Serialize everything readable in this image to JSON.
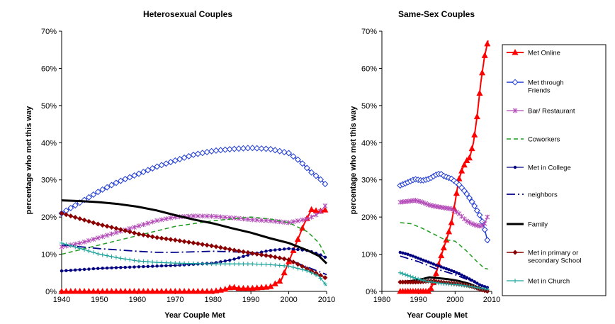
{
  "chart_data": [
    {
      "type": "line",
      "title": "Heterosexual Couples",
      "xlabel": "Year Couple Met",
      "ylabel": "percentage who met this way",
      "xlim": [
        1940,
        2010
      ],
      "ylim": [
        0,
        70
      ],
      "xticks": [
        "1940",
        "1950",
        "1960",
        "1970",
        "1980",
        "1990",
        "2000",
        "2010"
      ],
      "yticks": [
        "0%",
        "10%",
        "20%",
        "30%",
        "40%",
        "50%",
        "60%",
        "70%"
      ],
      "grid": false,
      "legend": "none",
      "series": [
        {
          "key": "online",
          "color": "#ff0000",
          "marker": "triangle",
          "dash": "",
          "width": 2,
          "x": [
            1940,
            1950,
            1960,
            1970,
            1980,
            1983,
            1985,
            1987,
            1990,
            1995,
            1998,
            2000,
            2002,
            2004,
            2006,
            2008,
            2010
          ],
          "y": [
            0,
            0,
            0,
            0,
            0,
            0.5,
            1.2,
            0.8,
            0.8,
            1.2,
            3,
            8,
            13,
            18,
            22,
            21.5,
            22
          ]
        },
        {
          "key": "friends",
          "color": "#1f3bd6",
          "marker": "diamond",
          "dash": "",
          "width": 1.5,
          "x": [
            1940,
            1945,
            1950,
            1955,
            1960,
            1965,
            1970,
            1975,
            1980,
            1985,
            1990,
            1995,
            2000,
            2003,
            2006,
            2008,
            2010
          ],
          "y": [
            21,
            24,
            27,
            29.5,
            31.5,
            33.5,
            35.2,
            36.8,
            37.8,
            38.3,
            38.6,
            38.3,
            37.2,
            35,
            32,
            30.5,
            28.5
          ]
        },
        {
          "key": "bar",
          "color": "#b34ab8",
          "marker": "star",
          "dash": "",
          "width": 1.2,
          "x": [
            1940,
            1945,
            1950,
            1955,
            1960,
            1965,
            1970,
            1975,
            1980,
            1985,
            1990,
            1995,
            2000,
            2005,
            2008,
            2010
          ],
          "y": [
            12,
            13,
            14.5,
            16,
            17.5,
            19,
            20,
            20.3,
            20.2,
            19.8,
            19.3,
            19,
            18.5,
            19.5,
            21,
            23.5
          ]
        },
        {
          "key": "coworkers",
          "color": "#219b21",
          "marker": "",
          "dash": "6,4",
          "width": 1.5,
          "x": [
            1940,
            1950,
            1960,
            1970,
            1980,
            1985,
            1990,
            1995,
            2000,
            2005,
            2008,
            2010
          ],
          "y": [
            10,
            12.5,
            15,
            17.5,
            19,
            19.5,
            20,
            19.5,
            18.5,
            16,
            13,
            9
          ]
        },
        {
          "key": "college",
          "color": "#000080",
          "marker": "dot",
          "dash": "",
          "width": 1.2,
          "x": [
            1940,
            1950,
            1960,
            1970,
            1980,
            1985,
            1990,
            1995,
            2000,
            2005,
            2008,
            2010
          ],
          "y": [
            5.5,
            6.2,
            6.6,
            7,
            7.6,
            8.5,
            10,
            11,
            11.5,
            11,
            10,
            9
          ]
        },
        {
          "key": "neighbors",
          "color": "#00008b",
          "marker": "",
          "dash": "12,4,2,4",
          "width": 1.8,
          "x": [
            1940,
            1950,
            1960,
            1965,
            1970,
            1980,
            1990,
            2000,
            2005,
            2010
          ],
          "y": [
            12.5,
            11.5,
            10.8,
            10.5,
            10.5,
            10.8,
            10.5,
            8.5,
            6.5,
            4.5
          ]
        },
        {
          "key": "family",
          "color": "#000000",
          "marker": "",
          "dash": "",
          "width": 3,
          "x": [
            1940,
            1945,
            1950,
            1955,
            1960,
            1965,
            1970,
            1975,
            1980,
            1985,
            1990,
            1995,
            2000,
            2005,
            2008,
            2010
          ],
          "y": [
            24.5,
            24.3,
            24,
            23.5,
            22.8,
            21.8,
            20.5,
            19.3,
            18.3,
            17,
            15.8,
            14.3,
            13,
            11,
            9.5,
            7.5
          ]
        },
        {
          "key": "primary",
          "color": "#8b0000",
          "marker": "diamond-filled",
          "dash": "",
          "width": 1.5,
          "x": [
            1940,
            1945,
            1950,
            1955,
            1960,
            1965,
            1970,
            1975,
            1980,
            1985,
            1990,
            1995,
            2000,
            2005,
            2010
          ],
          "y": [
            21,
            19.5,
            18,
            16.8,
            15.5,
            14.5,
            13.8,
            13,
            12.2,
            11.2,
            10.3,
            9.5,
            8.5,
            6,
            3.5
          ]
        },
        {
          "key": "church",
          "color": "#1aa39a",
          "marker": "plus",
          "dash": "",
          "width": 1.2,
          "x": [
            1940,
            1945,
            1950,
            1955,
            1960,
            1965,
            1970,
            1975,
            1980,
            1985,
            1990,
            1995,
            2000,
            2005,
            2008,
            2010
          ],
          "y": [
            13,
            11.5,
            10,
            9,
            8.2,
            7.8,
            7.6,
            7.5,
            7.4,
            7.4,
            7.4,
            7.2,
            6.8,
            5.5,
            4,
            1.5
          ]
        }
      ]
    },
    {
      "type": "line",
      "title": "Same-Sex Couples",
      "xlabel": "Year Couple Met",
      "ylabel": "percentage who met this way",
      "xlim": [
        1980,
        2010
      ],
      "ylim": [
        0,
        70
      ],
      "xticks": [
        "1980",
        "1990",
        "2000",
        "2010"
      ],
      "yticks": [
        "0%",
        "10%",
        "20%",
        "30%",
        "40%",
        "50%",
        "60%",
        "70%"
      ],
      "grid": false,
      "legend": "right",
      "series": [
        {
          "key": "online",
          "name": "Met Online",
          "color": "#ff0000",
          "marker": "triangle",
          "dash": "",
          "width": 2,
          "x": [
            1985,
            1988,
            1990,
            1992,
            1993,
            1994,
            1995,
            1996,
            1997,
            1998,
            1999,
            2000,
            2001,
            2002,
            2003,
            2004,
            2005,
            2006,
            2007,
            2008,
            2009
          ],
          "y": [
            0,
            0,
            0,
            0,
            0,
            2,
            5.5,
            9,
            12,
            15,
            18.5,
            24,
            30,
            33,
            35,
            36,
            40,
            47,
            56,
            63,
            67.5
          ]
        },
        {
          "key": "friends",
          "name": "Met through Friends",
          "color": "#1f3bd6",
          "marker": "diamond",
          "dash": "",
          "width": 1.5,
          "x": [
            1985,
            1987,
            1989,
            1991,
            1993,
            1995,
            1996,
            1997,
            1999,
            2001,
            2003,
            2005,
            2007,
            2008,
            2009
          ],
          "y": [
            28.5,
            29.3,
            30.2,
            29.8,
            30.3,
            31.5,
            31.7,
            31,
            30.3,
            28.8,
            26.5,
            23.5,
            20,
            17,
            13
          ]
        },
        {
          "key": "bar",
          "name": "Bar/ Restaurant",
          "color": "#b34ab8",
          "marker": "star",
          "dash": "",
          "width": 1.2,
          "x": [
            1985,
            1987,
            1989,
            1991,
            1993,
            1995,
            1997,
            1999,
            2001,
            2003,
            2005,
            2007,
            2008,
            2009
          ],
          "y": [
            24,
            24.2,
            24.5,
            24,
            23.2,
            22.8,
            22.5,
            22.2,
            21,
            19,
            18,
            17.5,
            18,
            20.5
          ]
        },
        {
          "key": "coworkers",
          "name": "Coworkers",
          "color": "#219b21",
          "marker": "",
          "dash": "6,4",
          "width": 1.5,
          "x": [
            1985,
            1988,
            1991,
            1994,
            1997,
            2000,
            2003,
            2006,
            2008,
            2009
          ],
          "y": [
            18.5,
            18.2,
            17,
            15.5,
            14,
            13.5,
            11,
            8,
            6.2,
            6
          ]
        },
        {
          "key": "college",
          "name": "Met in College",
          "color": "#000080",
          "marker": "dot",
          "dash": "",
          "width": 1.2,
          "x": [
            1985,
            1987,
            1989,
            1991,
            1993,
            1995,
            1997,
            1999,
            2001,
            2003,
            2005,
            2007,
            2009
          ],
          "y": [
            10.5,
            10,
            9.3,
            8.5,
            7.8,
            7,
            6.3,
            5.6,
            4.8,
            3.8,
            2.8,
            1.6,
            1
          ]
        },
        {
          "key": "neighbors",
          "name": "neighbors",
          "color": "#00008b",
          "marker": "",
          "dash": "12,4,2,4",
          "width": 1.8,
          "x": [
            1985,
            1990,
            1995,
            2000,
            2005,
            2009
          ],
          "y": [
            9.5,
            8,
            6,
            4.5,
            2.5,
            1
          ]
        },
        {
          "key": "family",
          "name": "Family",
          "color": "#000000",
          "marker": "",
          "dash": "",
          "width": 3,
          "x": [
            1985,
            1988,
            1991,
            1993,
            1995,
            1998,
            2001,
            2004,
            2007,
            2009
          ],
          "y": [
            2.5,
            2.8,
            3.3,
            3.8,
            3.6,
            3.3,
            2.8,
            2,
            0.8,
            0.3
          ]
        },
        {
          "key": "primary",
          "name": "Met in primary or secondary School",
          "color": "#8b0000",
          "marker": "diamond-filled",
          "dash": "",
          "width": 1.5,
          "x": [
            1985,
            1987,
            1989,
            1991,
            1993,
            1995,
            1997,
            1999,
            2001,
            2003,
            2005,
            2007,
            2009
          ],
          "y": [
            2.5,
            2.5,
            2.5,
            2.6,
            2.8,
            2.6,
            2.4,
            2.2,
            2,
            1.7,
            1.2,
            0.5,
            0
          ]
        },
        {
          "key": "church",
          "name": "Met in Church",
          "color": "#1aa39a",
          "marker": "plus",
          "dash": "",
          "width": 1.2,
          "x": [
            1985,
            1987,
            1989,
            1991,
            1993,
            1995,
            1997,
            1999,
            2001,
            2003,
            2005,
            2007,
            2009
          ],
          "y": [
            5,
            4.3,
            3.6,
            3,
            2.6,
            2.3,
            2.1,
            1.9,
            1.8,
            1.5,
            1.2,
            0.8,
            0.5
          ]
        }
      ]
    }
  ]
}
